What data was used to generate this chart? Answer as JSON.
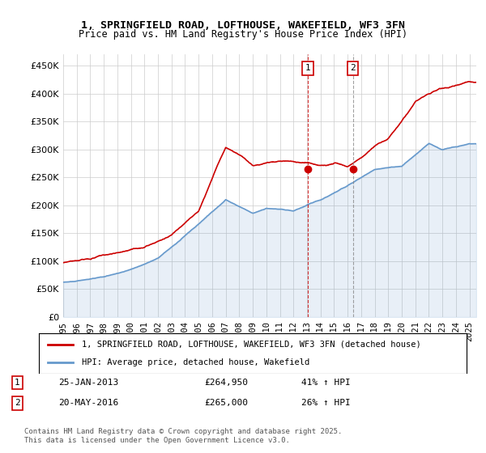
{
  "title_line1": "1, SPRINGFIELD ROAD, LOFTHOUSE, WAKEFIELD, WF3 3FN",
  "title_line2": "Price paid vs. HM Land Registry's House Price Index (HPI)",
  "ylabel": "",
  "ylim": [
    0,
    470000
  ],
  "yticks": [
    0,
    50000,
    100000,
    150000,
    200000,
    250000,
    300000,
    350000,
    400000,
    450000
  ],
  "ytick_labels": [
    "£0",
    "£50K",
    "£100K",
    "£150K",
    "£200K",
    "£250K",
    "£300K",
    "£350K",
    "£400K",
    "£450K"
  ],
  "xlim_start": 1995.0,
  "xlim_end": 2025.5,
  "xticks": [
    1995,
    1996,
    1997,
    1998,
    1999,
    2000,
    2001,
    2002,
    2003,
    2004,
    2005,
    2006,
    2007,
    2008,
    2009,
    2010,
    2011,
    2012,
    2013,
    2014,
    2015,
    2016,
    2017,
    2018,
    2019,
    2020,
    2021,
    2022,
    2023,
    2024,
    2025
  ],
  "hpi_color": "#6699cc",
  "price_color": "#cc0000",
  "marker1_x": 2013.07,
  "marker1_y": 264950,
  "marker1_label": "1",
  "marker1_date": "25-JAN-2013",
  "marker1_price": "£264,950",
  "marker1_hpi": "41% ↑ HPI",
  "marker2_x": 2016.38,
  "marker2_y": 265000,
  "marker2_label": "2",
  "marker2_date": "20-MAY-2016",
  "marker2_price": "£265,000",
  "marker2_hpi": "26% ↑ HPI",
  "legend_label_red": "1, SPRINGFIELD ROAD, LOFTHOUSE, WAKEFIELD, WF3 3FN (detached house)",
  "legend_label_blue": "HPI: Average price, detached house, Wakefield",
  "footnote": "Contains HM Land Registry data © Crown copyright and database right 2025.\nThis data is licensed under the Open Government Licence v3.0.",
  "background_color": "#ffffff",
  "grid_color": "#cccccc"
}
